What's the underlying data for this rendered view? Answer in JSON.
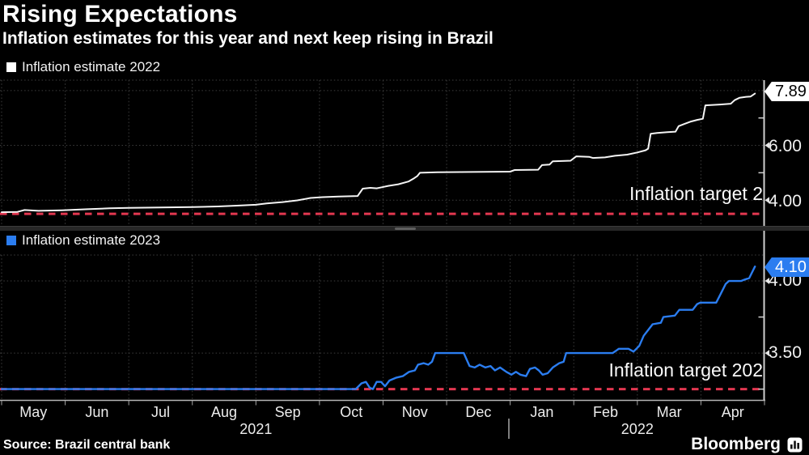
{
  "chart_data": {
    "type": "line",
    "title": "Rising Expectations",
    "subtitle": "Inflation estimates for this year and next keep rising in Brazil",
    "source": "Source: Brazil central bank",
    "brand": "Bloomberg",
    "x_axis": {
      "unit": "months, May 2021 through Apr 2022",
      "months": [
        "May",
        "Jun",
        "Jul",
        "Aug",
        "Sep",
        "Oct",
        "Nov",
        "Dec",
        "Jan",
        "Feb",
        "Mar",
        "Apr"
      ],
      "year_groups": [
        {
          "label": "2021",
          "start": 0,
          "end": 8
        },
        {
          "label": "2022",
          "start": 8,
          "end": 12
        }
      ]
    },
    "panels": [
      {
        "legend": "Inflation estimate 2022",
        "line_color": "#f4f4f4",
        "swatch_color": "#ffffff",
        "ylim": [
          3.06,
          8.38
        ],
        "gridlines": [
          8.0,
          6.0,
          4.0
        ],
        "unlabeled_ticks": [
          7.0,
          5.0
        ],
        "axis_labels": [
          {
            "value": 6.0,
            "text": "6.00"
          },
          {
            "value": 4.0,
            "text": "4.00"
          }
        ],
        "badge": {
          "value": 7.89,
          "text": "7.89",
          "bg": "#ffffff",
          "fg": "#000000"
        },
        "target": {
          "value": 3.5,
          "label": "Inflation target 2",
          "color": "#e23750"
        },
        "series": [
          [
            0,
            3.56
          ],
          [
            0.25,
            3.57
          ],
          [
            0.36,
            3.64
          ],
          [
            0.58,
            3.61
          ],
          [
            0.95,
            3.63
          ],
          [
            1.35,
            3.67
          ],
          [
            1.7,
            3.7
          ],
          [
            2.0,
            3.72
          ],
          [
            2.5,
            3.73
          ],
          [
            3.0,
            3.75
          ],
          [
            3.4,
            3.77
          ],
          [
            3.7,
            3.8
          ],
          [
            4.0,
            3.83
          ],
          [
            4.17,
            3.88
          ],
          [
            4.42,
            3.93
          ],
          [
            4.65,
            3.99
          ],
          [
            4.86,
            4.08
          ],
          [
            5.05,
            4.11
          ],
          [
            5.3,
            4.13
          ],
          [
            5.6,
            4.15
          ],
          [
            5.68,
            4.42
          ],
          [
            5.8,
            4.45
          ],
          [
            5.9,
            4.43
          ],
          [
            5.98,
            4.47
          ],
          [
            6.08,
            4.52
          ],
          [
            6.24,
            4.58
          ],
          [
            6.4,
            4.68
          ],
          [
            6.49,
            4.8
          ],
          [
            6.54,
            4.88
          ],
          [
            6.58,
            5.0
          ],
          [
            6.85,
            5.02
          ],
          [
            7.6,
            5.03
          ],
          [
            8.0,
            5.04
          ],
          [
            8.07,
            5.1
          ],
          [
            8.44,
            5.11
          ],
          [
            8.5,
            5.28
          ],
          [
            8.62,
            5.3
          ],
          [
            8.67,
            5.42
          ],
          [
            8.95,
            5.44
          ],
          [
            9.04,
            5.6
          ],
          [
            9.24,
            5.58
          ],
          [
            9.3,
            5.54
          ],
          [
            9.49,
            5.56
          ],
          [
            9.65,
            5.62
          ],
          [
            9.84,
            5.66
          ],
          [
            10.0,
            5.74
          ],
          [
            10.13,
            5.82
          ],
          [
            10.17,
            5.88
          ],
          [
            10.21,
            6.42
          ],
          [
            10.31,
            6.45
          ],
          [
            10.47,
            6.48
          ],
          [
            10.6,
            6.5
          ],
          [
            10.65,
            6.7
          ],
          [
            10.74,
            6.78
          ],
          [
            10.83,
            6.86
          ],
          [
            10.94,
            6.93
          ],
          [
            11.03,
            6.97
          ],
          [
            11.07,
            7.46
          ],
          [
            11.3,
            7.49
          ],
          [
            11.47,
            7.52
          ],
          [
            11.53,
            7.65
          ],
          [
            11.61,
            7.74
          ],
          [
            11.71,
            7.77
          ],
          [
            11.78,
            7.78
          ],
          [
            11.85,
            7.89
          ]
        ]
      },
      {
        "legend": "Inflation estimate 2023",
        "line_color": "#2b7df0",
        "swatch_color": "#2b7df0",
        "ylim": [
          3.175,
          4.18
        ],
        "gridlines": [
          4.0,
          3.5
        ],
        "unlabeled_ticks": [
          3.75,
          3.25
        ],
        "axis_labels": [
          {
            "value": 4.0,
            "text": "4.00"
          },
          {
            "value": 3.5,
            "text": "3.50"
          }
        ],
        "badge": {
          "value": 4.1,
          "text": "4.10",
          "bg": "#2b7df0",
          "fg": "#ffffff"
        },
        "target": {
          "value": 3.25,
          "label": "Inflation target 202",
          "color": "#e23750"
        },
        "series": [
          [
            0,
            3.25
          ],
          [
            5.57,
            3.25
          ],
          [
            5.66,
            3.29
          ],
          [
            5.73,
            3.3
          ],
          [
            5.79,
            3.26
          ],
          [
            5.84,
            3.25
          ],
          [
            5.9,
            3.3
          ],
          [
            5.97,
            3.3
          ],
          [
            6.03,
            3.27
          ],
          [
            6.1,
            3.31
          ],
          [
            6.21,
            3.33
          ],
          [
            6.31,
            3.34
          ],
          [
            6.41,
            3.37
          ],
          [
            6.5,
            3.38
          ],
          [
            6.55,
            3.42
          ],
          [
            6.64,
            3.43
          ],
          [
            6.71,
            3.42
          ],
          [
            6.77,
            3.44
          ],
          [
            6.82,
            3.5
          ],
          [
            7.27,
            3.5
          ],
          [
            7.32,
            3.45
          ],
          [
            7.36,
            3.41
          ],
          [
            7.44,
            3.4
          ],
          [
            7.52,
            3.42
          ],
          [
            7.61,
            3.4
          ],
          [
            7.69,
            3.41
          ],
          [
            7.76,
            3.38
          ],
          [
            7.84,
            3.4
          ],
          [
            7.94,
            3.37
          ],
          [
            8.02,
            3.35
          ],
          [
            8.09,
            3.37
          ],
          [
            8.16,
            3.35
          ],
          [
            8.25,
            3.34
          ],
          [
            8.31,
            3.39
          ],
          [
            8.39,
            3.4
          ],
          [
            8.45,
            3.38
          ],
          [
            8.51,
            3.35
          ],
          [
            8.59,
            3.36
          ],
          [
            8.67,
            3.4
          ],
          [
            8.77,
            3.43
          ],
          [
            8.84,
            3.44
          ],
          [
            8.88,
            3.5
          ],
          [
            9.61,
            3.5
          ],
          [
            9.71,
            3.53
          ],
          [
            9.86,
            3.53
          ],
          [
            9.94,
            3.51
          ],
          [
            10.03,
            3.55
          ],
          [
            10.1,
            3.62
          ],
          [
            10.17,
            3.66
          ],
          [
            10.24,
            3.7
          ],
          [
            10.37,
            3.71
          ],
          [
            10.41,
            3.75
          ],
          [
            10.59,
            3.76
          ],
          [
            10.66,
            3.8
          ],
          [
            10.87,
            3.8
          ],
          [
            10.94,
            3.84
          ],
          [
            10.99,
            3.85
          ],
          [
            11.24,
            3.85
          ],
          [
            11.31,
            3.91
          ],
          [
            11.39,
            3.98
          ],
          [
            11.44,
            4.0
          ],
          [
            11.63,
            4.0
          ],
          [
            11.69,
            4.01
          ],
          [
            11.76,
            4.02
          ],
          [
            11.85,
            4.1
          ]
        ]
      }
    ]
  }
}
